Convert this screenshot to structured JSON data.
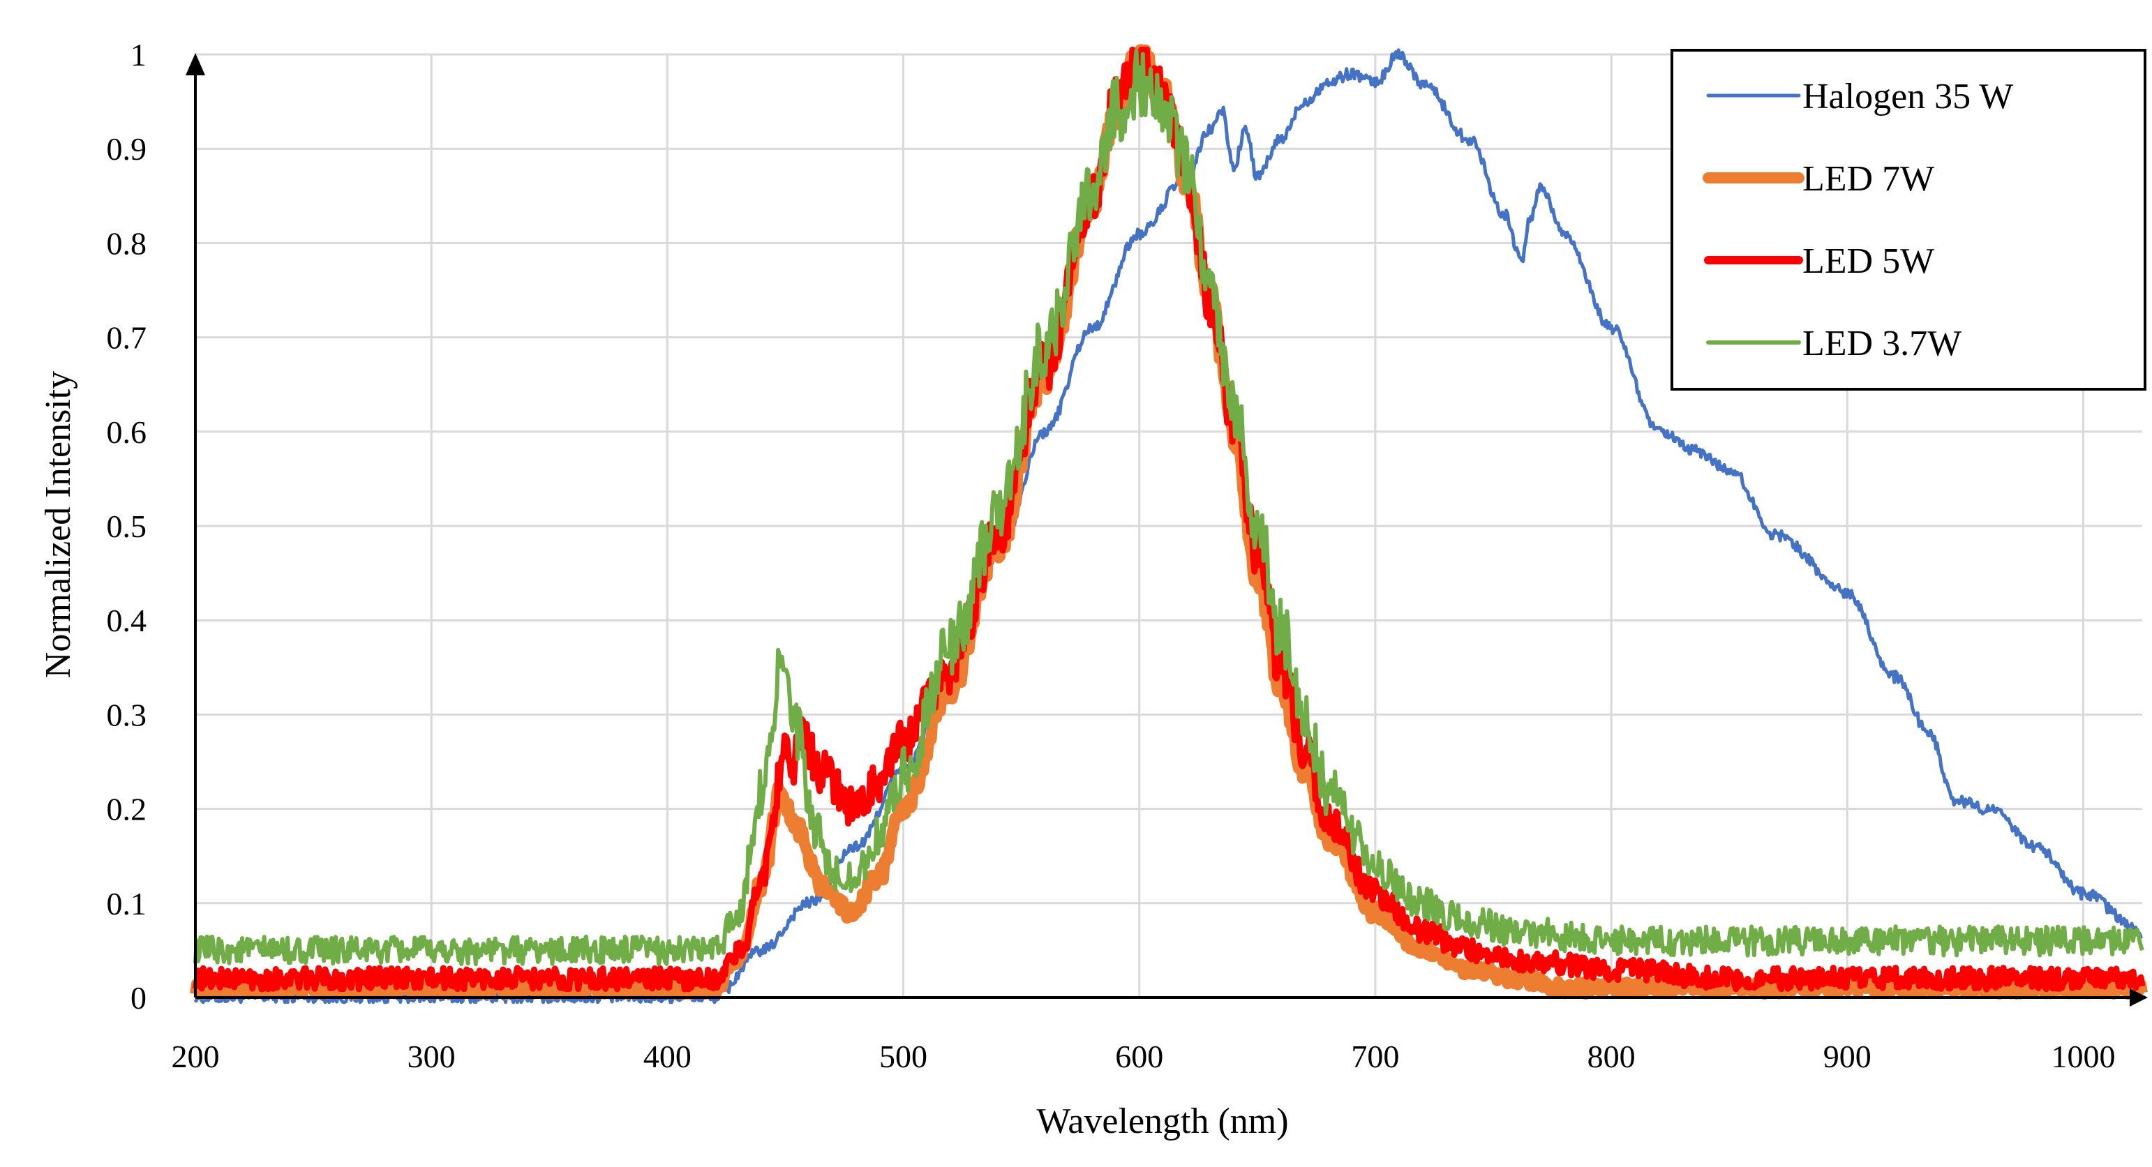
{
  "chart_data": {
    "type": "line",
    "title": "",
    "xlabel": "Wavelength (nm)",
    "ylabel": "Normalized Intensity",
    "xlim": [
      200,
      1025
    ],
    "ylim": [
      0,
      1
    ],
    "xticks": [
      200,
      300,
      400,
      500,
      600,
      700,
      800,
      900,
      1000
    ],
    "yticks": [
      0,
      0.1,
      0.2,
      0.3,
      0.4,
      0.5,
      0.6,
      0.7,
      0.8,
      0.9,
      1
    ],
    "ytick_labels": [
      "0",
      "0.1",
      "0.2",
      "0.3",
      "0.4",
      "0.5",
      "0.6",
      "0.7",
      "0.8",
      "0.9",
      "1"
    ],
    "grid": true,
    "legend_position": "top-right",
    "series": [
      {
        "name": "Halogen 35 W",
        "color": "#4472c4",
        "noise": 0.006,
        "x": [
          200,
          420,
          440,
          460,
          480,
          500,
          520,
          540,
          560,
          580,
          600,
          620,
          630,
          635,
          640,
          645,
          650,
          660,
          670,
          680,
          690,
          700,
          710,
          720,
          740,
          755,
          762,
          765,
          770,
          780,
          800,
          820,
          835,
          850,
          870,
          900,
          920,
          935,
          945,
          960,
          980,
          1000,
          1025
        ],
        "y": [
          0,
          0,
          0.05,
          0.1,
          0.16,
          0.24,
          0.34,
          0.47,
          0.6,
          0.71,
          0.81,
          0.87,
          0.92,
          0.94,
          0.88,
          0.92,
          0.87,
          0.91,
          0.95,
          0.97,
          0.98,
          0.97,
          1.0,
          0.97,
          0.91,
          0.83,
          0.78,
          0.82,
          0.86,
          0.81,
          0.71,
          0.6,
          0.58,
          0.56,
          0.49,
          0.43,
          0.34,
          0.28,
          0.21,
          0.2,
          0.16,
          0.11,
          0.07
        ]
      },
      {
        "name": "LED 7W",
        "color": "#ed7d31",
        "noise": 0.008,
        "x": [
          200,
          420,
          430,
          440,
          448,
          455,
          465,
          478,
          490,
          500,
          520,
          540,
          560,
          580,
          590,
          600,
          610,
          620,
          630,
          640,
          650,
          660,
          670,
          680,
          700,
          720,
          740,
          760,
          780,
          800,
          1025
        ],
        "y": [
          0.01,
          0.01,
          0.04,
          0.12,
          0.22,
          0.18,
          0.12,
          0.09,
          0.13,
          0.2,
          0.33,
          0.48,
          0.66,
          0.84,
          0.94,
          1.0,
          0.96,
          0.87,
          0.74,
          0.6,
          0.45,
          0.33,
          0.24,
          0.17,
          0.09,
          0.05,
          0.03,
          0.02,
          0.01,
          0.01,
          0.01
        ]
      },
      {
        "name": "LED 5W",
        "color": "#ff0000",
        "noise": 0.014,
        "x": [
          200,
          420,
          432,
          440,
          450,
          453,
          456,
          465,
          480,
          490,
          500,
          520,
          540,
          560,
          580,
          590,
          600,
          610,
          620,
          630,
          640,
          650,
          660,
          670,
          680,
          700,
          720,
          740,
          760,
          800,
          850,
          1025
        ],
        "y": [
          0.02,
          0.02,
          0.05,
          0.13,
          0.26,
          0.22,
          0.29,
          0.24,
          0.2,
          0.23,
          0.27,
          0.35,
          0.49,
          0.67,
          0.85,
          0.95,
          1.0,
          0.96,
          0.87,
          0.74,
          0.61,
          0.47,
          0.35,
          0.26,
          0.19,
          0.11,
          0.07,
          0.05,
          0.04,
          0.03,
          0.02,
          0.02
        ]
      },
      {
        "name": "LED 3.7W",
        "color": "#70ad47",
        "noise": 0.018,
        "x": [
          200,
          420,
          430,
          440,
          448,
          455,
          462,
          470,
          480,
          490,
          500,
          520,
          540,
          560,
          580,
          590,
          600,
          610,
          620,
          630,
          640,
          650,
          660,
          670,
          680,
          700,
          720,
          740,
          760,
          800,
          1025
        ],
        "y": [
          0.05,
          0.05,
          0.09,
          0.22,
          0.35,
          0.28,
          0.18,
          0.13,
          0.13,
          0.17,
          0.24,
          0.37,
          0.51,
          0.69,
          0.86,
          0.94,
          0.97,
          0.95,
          0.88,
          0.76,
          0.63,
          0.5,
          0.39,
          0.3,
          0.22,
          0.14,
          0.1,
          0.08,
          0.07,
          0.06,
          0.06
        ]
      }
    ]
  }
}
